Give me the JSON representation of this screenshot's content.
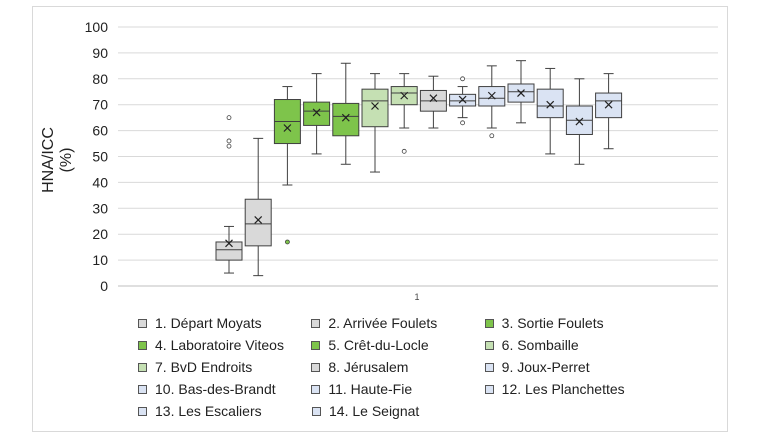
{
  "chart_data": {
    "type": "boxplot",
    "title": "",
    "xlabel": "",
    "ylabel_line1": "HNA/ICC",
    "ylabel_line2": "(%)",
    "x_tick_label": "1",
    "ylim": [
      0,
      100
    ],
    "yticks": [
      0,
      10,
      20,
      30,
      40,
      50,
      60,
      70,
      80,
      90,
      100
    ],
    "grid": true,
    "legend_position": "bottom",
    "colors": {
      "grey": "#d9d9d9",
      "green": "#7ec44b",
      "lightgreen": "#c5e0b3",
      "lightblue": "#dae3f3"
    },
    "series": [
      {
        "name": "1. Départ Moyats",
        "color": "#d9d9d9",
        "min": 5,
        "q1": 10,
        "median": 14,
        "q3": 17,
        "max": 23,
        "mean": 16.5,
        "outliers": [
          54,
          56,
          65
        ]
      },
      {
        "name": "2. Arrivée Foulets",
        "color": "#d9d9d9",
        "min": 4,
        "q1": 15.5,
        "median": 24,
        "q3": 33.5,
        "max": 57,
        "mean": 25.5,
        "outliers": []
      },
      {
        "name": "3. Sortie Foulets",
        "color": "#7ec44b",
        "min": 39,
        "q1": 55,
        "median": 63.5,
        "q3": 72,
        "max": 77,
        "mean": 61,
        "outliers": [
          17
        ]
      },
      {
        "name": "4. Laboratoire Viteos",
        "color": "#7ec44b",
        "min": 51,
        "q1": 62,
        "median": 67.5,
        "q3": 71,
        "max": 82,
        "mean": 67,
        "outliers": []
      },
      {
        "name": "5. Crêt-du-Locle",
        "color": "#7ec44b",
        "min": 47,
        "q1": 58,
        "median": 65.5,
        "q3": 70.5,
        "max": 86,
        "mean": 65,
        "outliers": []
      },
      {
        "name": "6. Sombaille",
        "color": "#c5e0b3",
        "min": 44,
        "q1": 61.5,
        "median": 71.5,
        "q3": 76,
        "max": 82,
        "mean": 69.5,
        "outliers": []
      },
      {
        "name": "7. BvD Endroits",
        "color": "#c5e0b3",
        "min": 61,
        "q1": 70,
        "median": 74.5,
        "q3": 77,
        "max": 82,
        "mean": 73.5,
        "outliers": [
          52
        ]
      },
      {
        "name": "8. Jérusalem",
        "color": "#d9d9d9",
        "min": 61,
        "q1": 67.5,
        "median": 71.5,
        "q3": 75.5,
        "max": 81,
        "mean": 72.5,
        "outliers": []
      },
      {
        "name": "9. Joux-Perret",
        "color": "#dae3f3",
        "min": 65,
        "q1": 69.5,
        "median": 71.5,
        "q3": 74,
        "max": 77,
        "mean": 72,
        "outliers": [
          63,
          80
        ]
      },
      {
        "name": "10. Bas-des-Brandt",
        "color": "#dae3f3",
        "min": 61,
        "q1": 69.5,
        "median": 72.5,
        "q3": 77,
        "max": 85,
        "mean": 73.5,
        "outliers": [
          58
        ]
      },
      {
        "name": "11. Haute-Fie",
        "color": "#dae3f3",
        "min": 63,
        "q1": 71,
        "median": 75,
        "q3": 78,
        "max": 87,
        "mean": 74.5,
        "outliers": []
      },
      {
        "name": "12. Les Planchettes",
        "color": "#dae3f3",
        "min": 51,
        "q1": 65,
        "median": 69.5,
        "q3": 76,
        "max": 84,
        "mean": 70,
        "outliers": []
      },
      {
        "name": "13. Les Escaliers",
        "color": "#dae3f3",
        "min": 47,
        "q1": 58.5,
        "median": 64,
        "q3": 69.5,
        "max": 80,
        "mean": 63.5,
        "outliers": []
      },
      {
        "name": "14. Le Seignat",
        "color": "#dae3f3",
        "min": 53,
        "q1": 65,
        "median": 71.5,
        "q3": 74.5,
        "max": 82,
        "mean": 70,
        "outliers": []
      }
    ]
  }
}
